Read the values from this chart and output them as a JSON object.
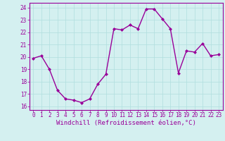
{
  "x": [
    0,
    1,
    2,
    3,
    4,
    5,
    6,
    7,
    8,
    9,
    10,
    11,
    12,
    13,
    14,
    15,
    16,
    17,
    18,
    19,
    20,
    21,
    22,
    23
  ],
  "y": [
    19.9,
    20.1,
    19.0,
    17.3,
    16.6,
    16.5,
    16.3,
    16.6,
    17.8,
    18.6,
    22.3,
    22.2,
    22.6,
    22.3,
    23.9,
    23.9,
    23.1,
    22.3,
    18.7,
    20.5,
    20.4,
    21.1,
    20.1,
    20.2
  ],
  "line_color": "#990099",
  "marker": "D",
  "marker_size": 2.0,
  "linewidth": 1.0,
  "xlabel": "Windchill (Refroidissement éolien,°C)",
  "xlabel_fontsize": 6.5,
  "ylabel_ticks": [
    16,
    17,
    18,
    19,
    20,
    21,
    22,
    23,
    24
  ],
  "xtick_labels": [
    "0",
    "1",
    "2",
    "3",
    "4",
    "5",
    "6",
    "7",
    "8",
    "9",
    "10",
    "11",
    "12",
    "13",
    "14",
    "15",
    "16",
    "17",
    "18",
    "19",
    "20",
    "21",
    "22",
    "23"
  ],
  "ylim": [
    15.7,
    24.4
  ],
  "xlim": [
    -0.5,
    23.5
  ],
  "bg_color": "#d4f0f0",
  "grid_color": "#b0dede",
  "tick_color": "#990099",
  "tick_fontsize": 5.5,
  "spine_color": "#990099"
}
